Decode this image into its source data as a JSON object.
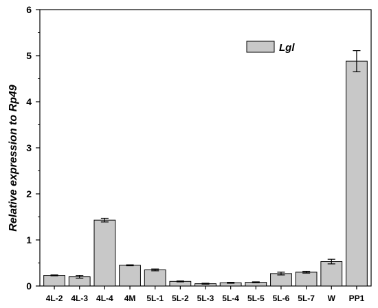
{
  "chart_data": {
    "type": "bar",
    "categories": [
      "4L-2",
      "4L-3",
      "4L-4",
      "4M",
      "5L-1",
      "5L-2",
      "5L-3",
      "5L-4",
      "5L-5",
      "5L-6",
      "5L-7",
      "W",
      "PP1"
    ],
    "series": [
      {
        "name": "Lgl",
        "values": [
          0.23,
          0.2,
          1.43,
          0.45,
          0.35,
          0.1,
          0.05,
          0.07,
          0.08,
          0.27,
          0.3,
          0.53,
          4.88
        ],
        "errors": [
          0.01,
          0.03,
          0.04,
          0.01,
          0.02,
          0.01,
          0.01,
          0.01,
          0.01,
          0.03,
          0.02,
          0.05,
          0.23
        ],
        "color": "#c8c8c8"
      }
    ],
    "ylabel": "Relative expression to Rp49",
    "xlabel": "",
    "ylim": [
      0,
      6
    ],
    "yticks": [
      "0",
      "1",
      "2",
      "3",
      "4",
      "5",
      "6"
    ],
    "grid": false,
    "legend": "top-right"
  }
}
